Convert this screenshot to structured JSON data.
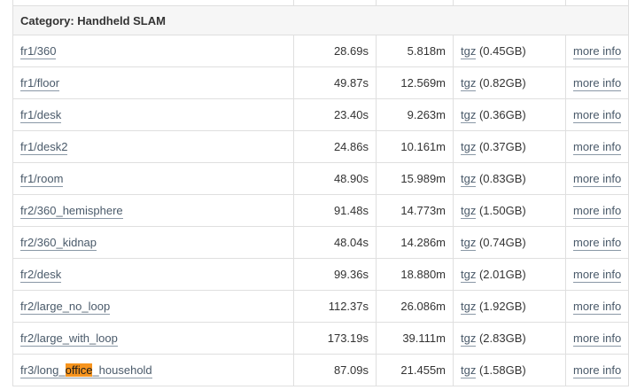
{
  "category": {
    "label": "Category: Handheld SLAM"
  },
  "rows": [
    {
      "name": "fr1/360",
      "duration": "28.69s",
      "length": "5.818m",
      "download": "tgz",
      "size": "(0.45GB)",
      "info": "more info"
    },
    {
      "name": "fr1/floor",
      "duration": "49.87s",
      "length": "12.569m",
      "download": "tgz",
      "size": "(0.82GB)",
      "info": "more info"
    },
    {
      "name": "fr1/desk",
      "duration": "23.40s",
      "length": "9.263m",
      "download": "tgz",
      "size": "(0.36GB)",
      "info": "more info"
    },
    {
      "name": "fr1/desk2",
      "duration": "24.86s",
      "length": "10.161m",
      "download": "tgz",
      "size": "(0.37GB)",
      "info": "more info"
    },
    {
      "name": "fr1/room",
      "duration": "48.90s",
      "length": "15.989m",
      "download": "tgz",
      "size": "(0.83GB)",
      "info": "more info"
    },
    {
      "name": "fr2/360_hemisphere",
      "duration": "91.48s",
      "length": "14.773m",
      "download": "tgz",
      "size": "(1.50GB)",
      "info": "more info"
    },
    {
      "name": "fr2/360_kidnap",
      "duration": "48.04s",
      "length": "14.286m",
      "download": "tgz",
      "size": "(0.74GB)",
      "info": "more info"
    },
    {
      "name": "fr2/desk",
      "duration": "99.36s",
      "length": "18.880m",
      "download": "tgz",
      "size": "(2.01GB)",
      "info": "more info"
    },
    {
      "name": "fr2/large_no_loop",
      "duration": "112.37s",
      "length": "26.086m",
      "download": "tgz",
      "size": "(1.92GB)",
      "info": "more info"
    },
    {
      "name": "fr2/large_with_loop",
      "duration": "173.19s",
      "length": "39.111m",
      "download": "tgz",
      "size": "(2.83GB)",
      "info": "more info"
    },
    {
      "name_prefix": "fr3/long_",
      "name_highlight": "office",
      "name_suffix": "_household",
      "duration": "87.09s",
      "length": "21.455m",
      "download": "tgz",
      "size": "(1.58GB)",
      "info": "more info"
    }
  ],
  "colors": {
    "link": "#4a5a6a",
    "highlight": "#f7941d",
    "border": "#dfdfdf",
    "category_bg": "#f6f6f6"
  }
}
